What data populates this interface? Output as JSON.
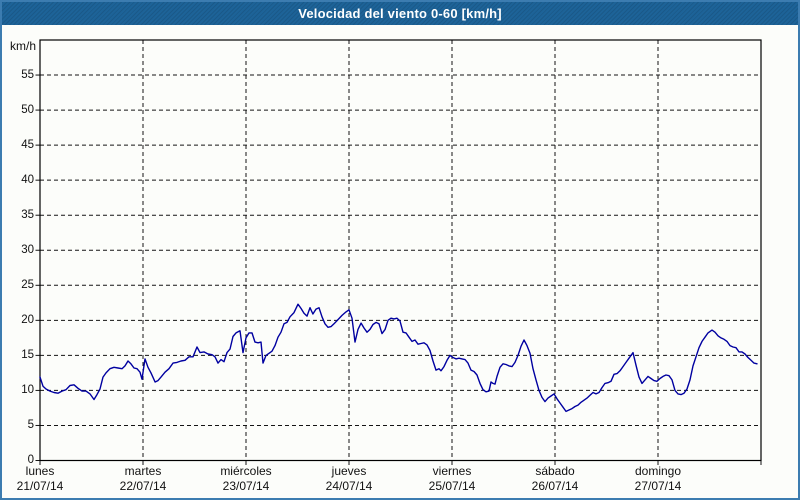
{
  "window": {
    "title": "Velocidad del viento 0-60 [km/h]",
    "title_bar_color": "#1d6398",
    "border_color": "#3c7cb0",
    "background_color": "#fcfdfa"
  },
  "chart_data": {
    "type": "line",
    "title": "Velocidad del viento 0-60 [km/h]",
    "ylabel": "km/h",
    "legend_position": "none",
    "grid": {
      "style": "dashed",
      "color": "#141414",
      "horizontal_every_kmh": 5,
      "vertical": "one dashed line at each day boundary"
    },
    "y_axis": {
      "unit": "km/h",
      "range": [
        0,
        60
      ],
      "labeled_ticks": [
        0,
        5,
        10,
        15,
        20,
        25,
        30,
        35,
        40,
        45,
        50,
        55
      ]
    },
    "x_axis": {
      "unit": "days",
      "range_days": [
        0,
        7
      ],
      "tick_labels": [
        {
          "name": "lunes",
          "date": "21/07/14"
        },
        {
          "name": "martes",
          "date": "22/07/14"
        },
        {
          "name": "miércoles",
          "date": "23/07/14"
        },
        {
          "name": "jueves",
          "date": "24/07/14"
        },
        {
          "name": "viernes",
          "date": "25/07/14"
        },
        {
          "name": "sábado",
          "date": "26/07/14"
        },
        {
          "name": "domingo",
          "date": "27/07/14"
        }
      ]
    },
    "series": [
      {
        "name": "velocidad del viento",
        "color": "#0000a0",
        "x_days": [
          0.0,
          0.029,
          0.058,
          0.097,
          0.136,
          0.175,
          0.214,
          0.252,
          0.291,
          0.33,
          0.369,
          0.408,
          0.447,
          0.485,
          0.524,
          0.553,
          0.583,
          0.612,
          0.641,
          0.68,
          0.718,
          0.757,
          0.796,
          0.825,
          0.854,
          0.883,
          0.913,
          0.942,
          0.971,
          0.99,
          1.019,
          1.049,
          1.078,
          1.117,
          1.146,
          1.175,
          1.214,
          1.252,
          1.291,
          1.33,
          1.369,
          1.408,
          1.447,
          1.485,
          1.524,
          1.553,
          1.592,
          1.631,
          1.67,
          1.699,
          1.728,
          1.757,
          1.786,
          1.816,
          1.845,
          1.874,
          1.903,
          1.942,
          1.971,
          2.0,
          2.029,
          2.058,
          2.087,
          2.117,
          2.146,
          2.165,
          2.194,
          2.223,
          2.252,
          2.282,
          2.311,
          2.34,
          2.369,
          2.398,
          2.427,
          2.466,
          2.505,
          2.534,
          2.563,
          2.592,
          2.621,
          2.65,
          2.68,
          2.709,
          2.738,
          2.767,
          2.796,
          2.825,
          2.854,
          2.893,
          2.932,
          2.971,
          3.0,
          3.029,
          3.058,
          3.087,
          3.117,
          3.146,
          3.175,
          3.204,
          3.233,
          3.262,
          3.291,
          3.32,
          3.35,
          3.379,
          3.408,
          3.437,
          3.466,
          3.495,
          3.524,
          3.553,
          3.583,
          3.612,
          3.641,
          3.67,
          3.699,
          3.728,
          3.757,
          3.786,
          3.816,
          3.845,
          3.874,
          3.893,
          3.922,
          3.951,
          3.981,
          4.01,
          4.039,
          4.068,
          4.097,
          4.126,
          4.155,
          4.184,
          4.214,
          4.243,
          4.272,
          4.301,
          4.33,
          4.359,
          4.379,
          4.398,
          4.417,
          4.437,
          4.466,
          4.495,
          4.524,
          4.553,
          4.583,
          4.612,
          4.641,
          4.67,
          4.699,
          4.728,
          4.757,
          4.786,
          4.816,
          4.845,
          4.874,
          4.903,
          4.932,
          4.961,
          4.99,
          5.019,
          5.049,
          5.078,
          5.107,
          5.136,
          5.165,
          5.194,
          5.223,
          5.252,
          5.282,
          5.311,
          5.34,
          5.369,
          5.398,
          5.427,
          5.456,
          5.485,
          5.515,
          5.544,
          5.573,
          5.602,
          5.631,
          5.66,
          5.689,
          5.718,
          5.757,
          5.786,
          5.816,
          5.845,
          5.874,
          5.903,
          5.932,
          5.961,
          5.99,
          6.019,
          6.049,
          6.078,
          6.107,
          6.136,
          6.165,
          6.194,
          6.223,
          6.252,
          6.282,
          6.311,
          6.34,
          6.369,
          6.398,
          6.427,
          6.456,
          6.485,
          6.524,
          6.553,
          6.583,
          6.612,
          6.641,
          6.67,
          6.699,
          6.728,
          6.757,
          6.786,
          6.816,
          6.845,
          6.874,
          6.903,
          6.932,
          6.961
        ],
        "y_kmh": [
          11.9,
          10.6,
          10.2,
          9.9,
          9.7,
          9.6,
          9.9,
          10.1,
          10.7,
          10.8,
          10.3,
          9.9,
          9.9,
          9.5,
          8.7,
          9.4,
          10.2,
          11.9,
          12.5,
          13.1,
          13.3,
          13.2,
          13.1,
          13.5,
          14.2,
          13.8,
          13.2,
          13.1,
          12.6,
          11.6,
          14.5,
          13.3,
          12.5,
          11.2,
          11.4,
          11.9,
          12.6,
          13.1,
          13.9,
          14.0,
          14.2,
          14.3,
          14.8,
          14.8,
          16.2,
          15.4,
          15.5,
          15.2,
          15.1,
          14.8,
          13.9,
          14.4,
          14.1,
          15.4,
          15.9,
          17.7,
          18.2,
          18.5,
          15.4,
          17.5,
          18.2,
          18.2,
          16.9,
          16.8,
          16.9,
          13.9,
          15.0,
          15.3,
          15.6,
          16.4,
          17.6,
          18.3,
          19.5,
          19.7,
          20.5,
          21.1,
          22.3,
          21.7,
          21.0,
          20.6,
          21.8,
          20.9,
          21.6,
          21.8,
          20.5,
          19.5,
          19.0,
          19.1,
          19.5,
          20.1,
          20.7,
          21.2,
          21.5,
          20.3,
          16.9,
          18.7,
          19.6,
          18.9,
          18.3,
          18.7,
          19.4,
          19.7,
          19.5,
          18.1,
          18.7,
          20.0,
          20.3,
          20.2,
          20.3,
          19.9,
          18.3,
          18.2,
          17.6,
          17.0,
          17.2,
          16.6,
          16.7,
          16.8,
          16.5,
          15.7,
          14.2,
          12.9,
          13.1,
          12.8,
          13.4,
          14.3,
          15.0,
          14.7,
          14.5,
          14.6,
          14.5,
          14.4,
          13.9,
          12.9,
          12.7,
          12.2,
          11.0,
          10.1,
          9.8,
          9.9,
          11.2,
          11.0,
          10.9,
          12.0,
          13.3,
          13.8,
          13.7,
          13.5,
          13.4,
          14.0,
          15.0,
          16.3,
          17.2,
          16.4,
          15.3,
          13.1,
          11.5,
          10.0,
          9.0,
          8.4,
          8.9,
          9.2,
          9.5,
          8.8,
          8.2,
          7.6,
          7.0,
          7.2,
          7.4,
          7.7,
          7.9,
          8.3,
          8.6,
          8.9,
          9.3,
          9.7,
          9.5,
          9.7,
          10.4,
          11.0,
          11.1,
          11.3,
          12.3,
          12.4,
          12.8,
          13.4,
          14.0,
          14.6,
          15.4,
          13.6,
          11.9,
          11.0,
          11.5,
          12.0,
          11.7,
          11.4,
          11.3,
          11.7,
          12.0,
          12.2,
          12.1,
          11.5,
          10.0,
          9.5,
          9.4,
          9.6,
          10.2,
          11.5,
          13.5,
          14.8,
          16.1,
          17.0,
          17.6,
          18.2,
          18.6,
          18.3,
          17.8,
          17.5,
          17.3,
          17.0,
          16.4,
          16.2,
          16.1,
          15.5,
          15.5,
          15.2,
          14.7,
          14.3,
          13.9,
          13.8
        ]
      }
    ]
  }
}
